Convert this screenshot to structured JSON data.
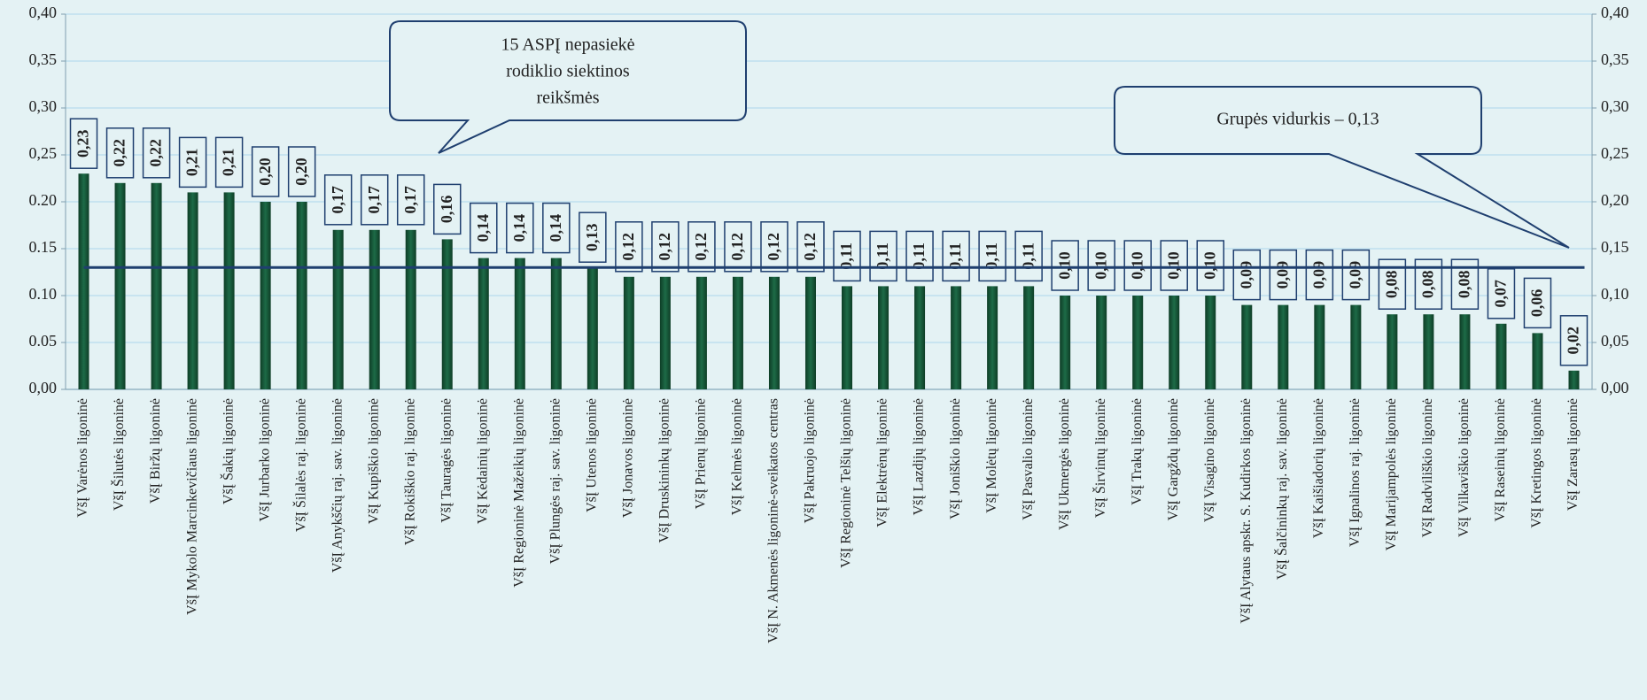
{
  "chart_data": {
    "type": "bar",
    "categories": [
      "VšĮ Varėnos ligoninė",
      "VšĮ Šilutės ligoninė",
      "VšĮ Biržų ligoninė",
      "VšĮ Mykolo Marcinkevičiaus ligoninė",
      "VšĮ Šakių ligoninė",
      "VšĮ Jurbarko ligoninė",
      "VšĮ Šilalės raj. ligoninė",
      "VšĮ Anykščių raj. sav. ligoninė",
      "VšĮ Kupiškio ligoninė",
      "VšĮ Rokiškio raj. ligoninė",
      "VšĮ Tauragės ligoninė",
      "VšĮ Kėdainių ligoninė",
      "VšĮ Regioninė Mažeikių ligoninė",
      "VšĮ Plungės raj. sav. ligoninė",
      "VšĮ Utenos ligoninė",
      "VšĮ Jonavos ligoninė",
      "VšĮ Druskininkų ligoninė",
      "VšĮ Prienų ligoninė",
      "VšĮ Kelmės ligoninė",
      "VšĮ N. Akmenės ligoninė-sveikatos centras",
      "VšĮ Pakruojo ligoninė",
      "VšĮ Regioninė Telšių ligoninė",
      "VšĮ Elektrėnų ligoninė",
      "VšĮ Lazdijų ligoninė",
      "VšĮ Joniškio ligoninė",
      "VšĮ Molėtų ligoninė",
      "VšĮ Pasvalio ligoninė",
      "VšĮ Ukmergės ligoninė",
      "VšĮ Širvintų ligoninė",
      "VšĮ Trakų ligoninė",
      "VšĮ Gargždų ligoninė",
      "VšĮ Visagino ligoninė",
      "VšĮ Alytaus apskr. S. Kudirkos ligoninė",
      "VšĮ Šalčininkų raj. sav. ligoninė",
      "VšĮ Kaišiadorių ligoninė",
      "VšĮ Ignalinos raj. ligoninė",
      "VšĮ Marijampolės ligoninė",
      "VšĮ Radviliškio ligoninė",
      "VšĮ Vilkaviškio ligoninė",
      "VšĮ Raseinių ligoninė",
      "VšĮ Kretingos ligoninė",
      "VšĮ Zarasų ligoninė"
    ],
    "values": [
      0.23,
      0.22,
      0.22,
      0.21,
      0.21,
      0.2,
      0.2,
      0.17,
      0.17,
      0.17,
      0.16,
      0.14,
      0.14,
      0.14,
      0.13,
      0.12,
      0.12,
      0.12,
      0.12,
      0.12,
      0.12,
      0.11,
      0.11,
      0.11,
      0.11,
      0.11,
      0.11,
      0.1,
      0.1,
      0.1,
      0.1,
      0.1,
      0.09,
      0.09,
      0.09,
      0.09,
      0.08,
      0.08,
      0.08,
      0.07,
      0.06,
      0.02
    ],
    "value_labels": [
      "0,23",
      "0,22",
      "0,22",
      "0,21",
      "0,21",
      "0,20",
      "0,20",
      "0,17",
      "0,17",
      "0,17",
      "0,16",
      "0,14",
      "0,14",
      "0,14",
      "0,13",
      "0,12",
      "0,12",
      "0,12",
      "0,12",
      "0,12",
      "0,12",
      "0,11",
      "0,11",
      "0,11",
      "0,11",
      "0,11",
      "0,11",
      "0,10",
      "0,10",
      "0,10",
      "0,10",
      "0,10",
      "0,09",
      "0,09",
      "0,09",
      "0,09",
      "0,08",
      "0,08",
      "0,08",
      "0,07",
      "0,06",
      "0,02"
    ],
    "color": "#1d6b47",
    "label_color": "#1f3864",
    "highlight_color": "#e00000",
    "average": 0.13,
    "average_color": "#1f3f6f",
    "ylim": [
      0,
      0.4
    ],
    "yticks": [
      {
        "value": 0,
        "label": "0,00"
      },
      {
        "value": 0.05,
        "label": "0.05"
      },
      {
        "value": 0.1,
        "label": "0.10"
      },
      {
        "value": 0.15,
        "label": "0.15"
      },
      {
        "value": 0.2,
        "label": "0.20"
      },
      {
        "value": 0.25,
        "label": "0,25"
      },
      {
        "value": 0.3,
        "label": "0,30"
      },
      {
        "value": 0.35,
        "label": "0,35"
      },
      {
        "value": 0.4,
        "label": "0,40"
      }
    ],
    "y2lim": [
      0,
      0.4
    ],
    "y2ticks": [
      {
        "value": 0,
        "label": "0,00"
      },
      {
        "value": 0.05,
        "label": "0,05"
      },
      {
        "value": 0.1,
        "label": "0,10"
      },
      {
        "value": 0.15,
        "label": "0,15"
      },
      {
        "value": 0.2,
        "label": "0,20"
      },
      {
        "value": 0.25,
        "label": "0,25"
      },
      {
        "value": 0.3,
        "label": "0,30"
      },
      {
        "value": 0.35,
        "label": "0,35"
      },
      {
        "value": 0.4,
        "label": "0,40"
      }
    ],
    "grid": true,
    "annotations": [
      {
        "lines": [
          "15 ASPĮ nepasiekė",
          "rodiklio siektinos",
          "reikšmės"
        ]
      },
      {
        "lines": [
          "Grupės vidurkis – 0,13"
        ]
      }
    ]
  }
}
